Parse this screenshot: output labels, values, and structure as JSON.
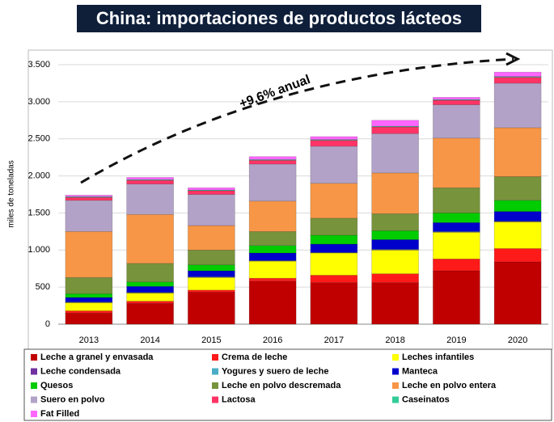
{
  "chart_data": {
    "type": "bar",
    "stacked": true,
    "title": "China: importaciones de productos lácteos",
    "y_label": "miles de toneladas",
    "annotation": "+9,6% anual",
    "categories": [
      "2013",
      "2014",
      "2015",
      "2016",
      "2017",
      "2018",
      "2019",
      "2020"
    ],
    "ylim": [
      0,
      3500
    ],
    "yticks": [
      0,
      500,
      {
        "value": 1000,
        "label": "1.000"
      },
      {
        "value": 1500,
        "label": "1.500"
      },
      {
        "value": 2000,
        "label": "2.000"
      },
      {
        "value": 2500,
        "label": "2.500"
      },
      {
        "value": 3000,
        "label": "3.000"
      },
      {
        "value": 3500,
        "label": "3.500"
      }
    ],
    "grid": true,
    "series": [
      {
        "name": "Leche a granel y envasada",
        "color": "#c00000",
        "values": [
          150,
          280,
          430,
          580,
          560,
          560,
          720,
          840
        ]
      },
      {
        "name": "Crema de leche",
        "color": "#ff1a1a",
        "values": [
          30,
          30,
          30,
          40,
          100,
          120,
          160,
          180
        ]
      },
      {
        "name": "Leches infantiles",
        "color": "#ffff00",
        "values": [
          110,
          110,
          170,
          230,
          300,
          320,
          360,
          360
        ]
      },
      {
        "name": "Leche condensada",
        "color": "#7030a0",
        "values": [
          5,
          5,
          5,
          5,
          5,
          5,
          5,
          5
        ]
      },
      {
        "name": "Yogures y suero de leche",
        "color": "#4bacc6",
        "values": [
          5,
          5,
          5,
          5,
          5,
          5,
          5,
          5
        ]
      },
      {
        "name": "Manteca",
        "color": "#0000cc",
        "values": [
          60,
          80,
          80,
          100,
          110,
          130,
          120,
          130
        ]
      },
      {
        "name": "Quesos",
        "color": "#00cc00",
        "values": [
          50,
          60,
          80,
          100,
          120,
          120,
          130,
          150
        ]
      },
      {
        "name": "Leche en polvo descremada",
        "color": "#77933c",
        "values": [
          220,
          250,
          200,
          190,
          230,
          230,
          340,
          320
        ]
      },
      {
        "name": "Leche en polvo entera",
        "color": "#f79646",
        "values": [
          620,
          660,
          330,
          410,
          470,
          550,
          670,
          660
        ]
      },
      {
        "name": "Suero en polvo",
        "color": "#b3a2c7",
        "values": [
          420,
          410,
          420,
          500,
          500,
          530,
          450,
          600
        ]
      },
      {
        "name": "Lactosa",
        "color": "#ff3366",
        "values": [
          40,
          50,
          50,
          50,
          80,
          90,
          60,
          80
        ]
      },
      {
        "name": "Caseinatos",
        "color": "#33cc99",
        "values": [
          10,
          10,
          10,
          10,
          10,
          10,
          10,
          10
        ]
      },
      {
        "name": "Fat Filled",
        "color": "#ff66ff",
        "values": [
          20,
          30,
          30,
          40,
          40,
          80,
          30,
          60
        ]
      }
    ]
  }
}
